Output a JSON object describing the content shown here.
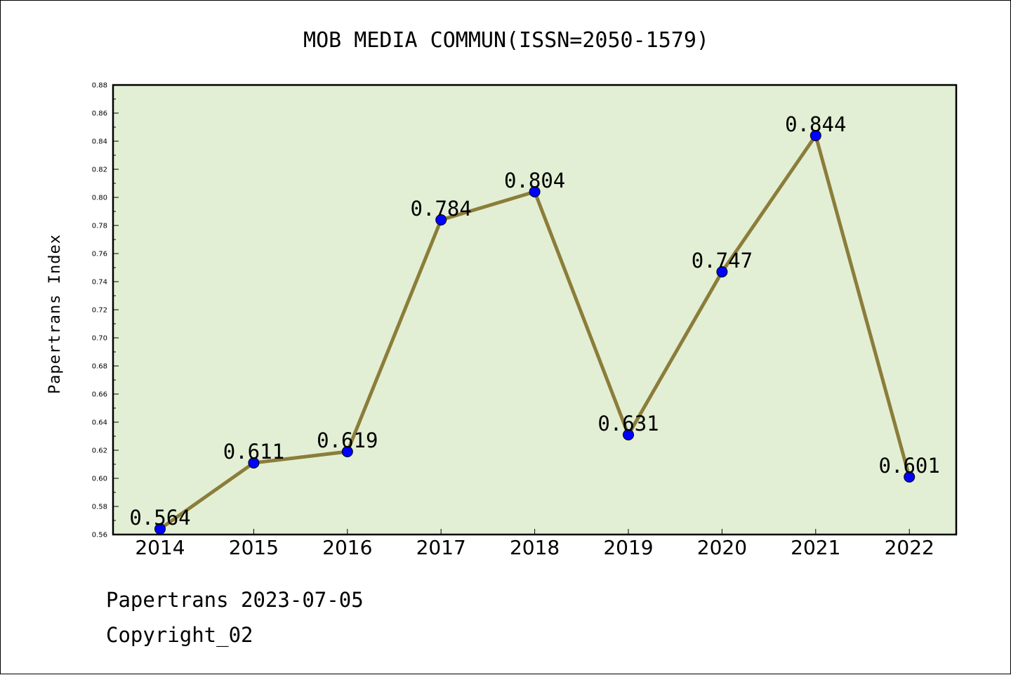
{
  "chart_data": {
    "type": "line",
    "title": "MOB MEDIA COMMUN(ISSN=2050-1579)",
    "xlabel": "",
    "ylabel": "Papertrans Index",
    "categories": [
      "2014",
      "2015",
      "2016",
      "2017",
      "2018",
      "2019",
      "2020",
      "2021",
      "2022"
    ],
    "series": [
      {
        "values": [
          0.564,
          0.611,
          0.619,
          0.784,
          0.804,
          0.631,
          0.747,
          0.844,
          0.601
        ],
        "data_labels": [
          "0.564",
          "0.611",
          "0.619",
          "0.784",
          "0.804",
          "0.631",
          "0.747",
          "0.844",
          "0.601"
        ],
        "line_color": "#8B7D3A",
        "marker_color": "#0000FF"
      }
    ],
    "ylim": [
      0.56,
      0.88
    ],
    "yticks": [
      "0.56",
      "0.58",
      "0.60",
      "0.62",
      "0.64",
      "0.66",
      "0.68",
      "0.70",
      "0.72",
      "0.74",
      "0.76",
      "0.78",
      "0.80",
      "0.82",
      "0.84",
      "0.86",
      "0.88"
    ],
    "plot_background": "#E2EFD4",
    "grid": false,
    "legend": "none"
  },
  "footer": {
    "line1": "Papertrans 2023-07-05",
    "line2": "Copyright_02"
  }
}
